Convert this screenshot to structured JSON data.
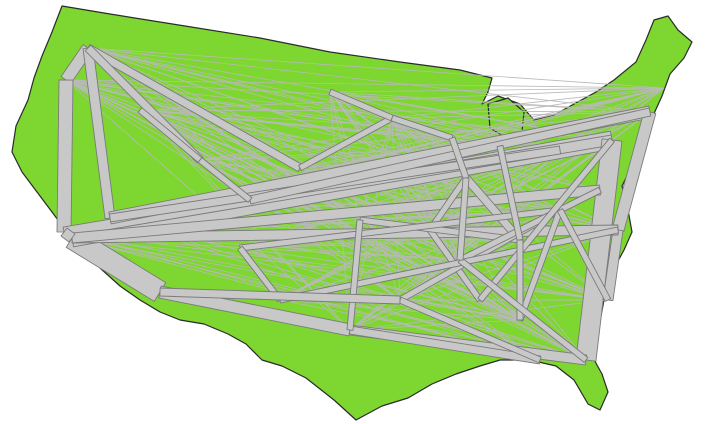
{
  "map": {
    "region": "contiguous-united-states",
    "land_color": "#7ed630",
    "flow_color": "#c8c8c8",
    "flow_outline_color": "#7a7a7a",
    "thin_flow_color": "#b9b9b9",
    "text_labels": []
  }
}
